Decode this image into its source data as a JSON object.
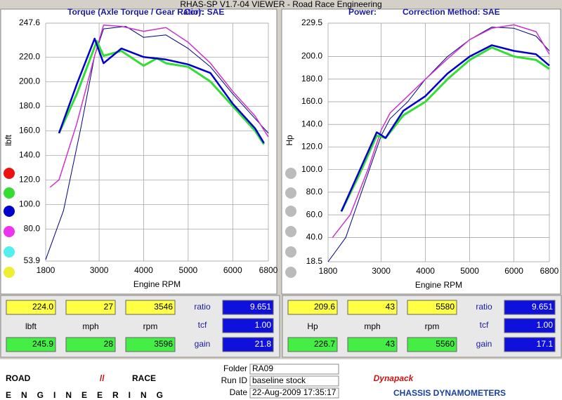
{
  "window_title": "RHAS-SP V1.7-04  VIEWER - Road Race Engineering",
  "chart_data": [
    {
      "type": "line",
      "subtitle": "Torque (Axle Torque / Gear Ratio):",
      "correction": "Corr: SAE",
      "ylabel": "lbft",
      "xlabel": "Engine RPM",
      "xlim": [
        1800,
        6800
      ],
      "xticks": [
        1800,
        3000,
        4000,
        5000,
        6000,
        6800
      ],
      "ylim": [
        53.9,
        247.6
      ],
      "yticks": [
        53.9,
        {
          "value": 80,
          "label": "80.0"
        },
        {
          "value": 100,
          "label": "100.0"
        },
        {
          "value": 120,
          "label": "120.0"
        },
        {
          "value": 140,
          "label": "140.0"
        },
        {
          "value": 160,
          "label": "160.0"
        },
        {
          "value": 180,
          "label": "180.0"
        },
        {
          "value": 200,
          "label": "200.0"
        },
        {
          "value": 220,
          "label": "220.0"
        },
        247.6
      ],
      "grid": true,
      "series": [
        {
          "color": "#000080",
          "width": 1,
          "x": [
            1800,
            2200,
            2600,
            2900,
            3100,
            3600,
            4000,
            4500,
            5000,
            5500,
            6000,
            6500,
            6800
          ],
          "values": [
            55,
            95,
            164,
            221,
            243,
            245,
            236,
            238,
            227,
            212,
            190,
            170,
            158
          ]
        },
        {
          "color": "#cc33cc",
          "width": 1.5,
          "x": [
            1900,
            2100,
            2500,
            2900,
            3100,
            3500,
            4000,
            4500,
            5000,
            5500,
            6000,
            6500,
            6800
          ],
          "values": [
            114,
            120,
            166,
            221,
            246,
            245,
            241,
            244,
            232,
            215,
            192,
            172,
            155
          ]
        },
        {
          "color": "#33dd33",
          "width": 3,
          "x": [
            2100,
            2500,
            2950,
            3100,
            3500,
            4000,
            4300,
            4500,
            5000,
            5500,
            6000,
            6500,
            6700
          ],
          "values": [
            158,
            190,
            233,
            221,
            225,
            213,
            219,
            215,
            212,
            200,
            180,
            160,
            149
          ]
        },
        {
          "color": "#0000cc",
          "width": 2.5,
          "x": [
            2100,
            2500,
            2900,
            3100,
            3500,
            4000,
            4500,
            5000,
            5500,
            6000,
            6500,
            6700
          ],
          "values": [
            158,
            198,
            235,
            215,
            227,
            220,
            218,
            214,
            207,
            182,
            162,
            150
          ]
        }
      ]
    },
    {
      "type": "line",
      "subtitle": "Power:",
      "correction": "Correction Method: SAE",
      "ylabel": "Hp",
      "xlabel": "Engine RPM",
      "xlim": [
        1800,
        6800
      ],
      "xticks": [
        1800,
        3000,
        4000,
        5000,
        6000,
        6800
      ],
      "ylim": [
        18.5,
        229.5
      ],
      "yticks": [
        18.5,
        {
          "value": 40,
          "label": "40.0"
        },
        {
          "value": 60,
          "label": "60.0"
        },
        {
          "value": 80,
          "label": "80.0"
        },
        {
          "value": 100,
          "label": "100.0"
        },
        {
          "value": 120,
          "label": "120.0"
        },
        {
          "value": 140,
          "label": "140.0"
        },
        {
          "value": 160,
          "label": "160.0"
        },
        {
          "value": 180,
          "label": "180.0"
        },
        {
          "value": 200,
          "label": "200.0"
        },
        229.5
      ],
      "grid": true,
      "series": [
        {
          "color": "#000080",
          "width": 1,
          "x": [
            1800,
            2200,
            2600,
            3000,
            3200,
            3600,
            4000,
            4500,
            5000,
            5500,
            6000,
            6500,
            6800
          ],
          "values": [
            18.5,
            40,
            85,
            130,
            145,
            160,
            180,
            200,
            215,
            226,
            225,
            218,
            205
          ]
        },
        {
          "color": "#cc33cc",
          "width": 1.5,
          "x": [
            1900,
            2300,
            2700,
            3000,
            3200,
            3600,
            4000,
            4500,
            5000,
            5500,
            6000,
            6500,
            6800
          ],
          "values": [
            40,
            60,
            100,
            135,
            150,
            165,
            180,
            198,
            215,
            225,
            228,
            222,
            202
          ]
        },
        {
          "color": "#33dd33",
          "width": 3,
          "x": [
            2100,
            2500,
            2900,
            3100,
            3500,
            4000,
            4500,
            5000,
            5500,
            6000,
            6500,
            6800
          ],
          "values": [
            63,
            95,
            130,
            128,
            148,
            160,
            180,
            197,
            208,
            200,
            197,
            189
          ]
        },
        {
          "color": "#0000cc",
          "width": 2.5,
          "x": [
            2100,
            2500,
            2900,
            3100,
            3500,
            4000,
            4500,
            5000,
            5500,
            6000,
            6500,
            6800
          ],
          "values": [
            63,
            98,
            133,
            128,
            152,
            165,
            185,
            200,
            210,
            205,
            202,
            192
          ]
        }
      ]
    }
  ],
  "readouts": [
    {
      "top": [
        "224.0",
        "27",
        "3546"
      ],
      "units": [
        "lbft",
        "mph",
        "rpm"
      ],
      "bottom": [
        "245.9",
        "28",
        "3596"
      ],
      "labels": [
        "ratio",
        "tcf",
        "gain"
      ],
      "values": [
        "9.651",
        "1.00",
        "21.8"
      ]
    },
    {
      "top": [
        "209.6",
        "43",
        "5580"
      ],
      "units": [
        "Hp",
        "mph",
        "rpm"
      ],
      "bottom": [
        "226.7",
        "43",
        "5560"
      ],
      "labels": [
        "ratio",
        "tcf",
        "gain"
      ],
      "values": [
        "9.651",
        "1.00",
        "17.1"
      ]
    }
  ],
  "footer": {
    "logo_left": "ROAD",
    "logo_right": "RACE",
    "logo_sub": "ENGINEERING",
    "fields": [
      {
        "label": "Folder",
        "value": "RA09"
      },
      {
        "label": "Run ID",
        "value": "baseline stock"
      },
      {
        "label": "Date",
        "value": "22-Aug-2009  17:35:17"
      }
    ],
    "brand": "Dynapack",
    "brand_sub": "CHASSIS DYNAMOMETERS"
  }
}
